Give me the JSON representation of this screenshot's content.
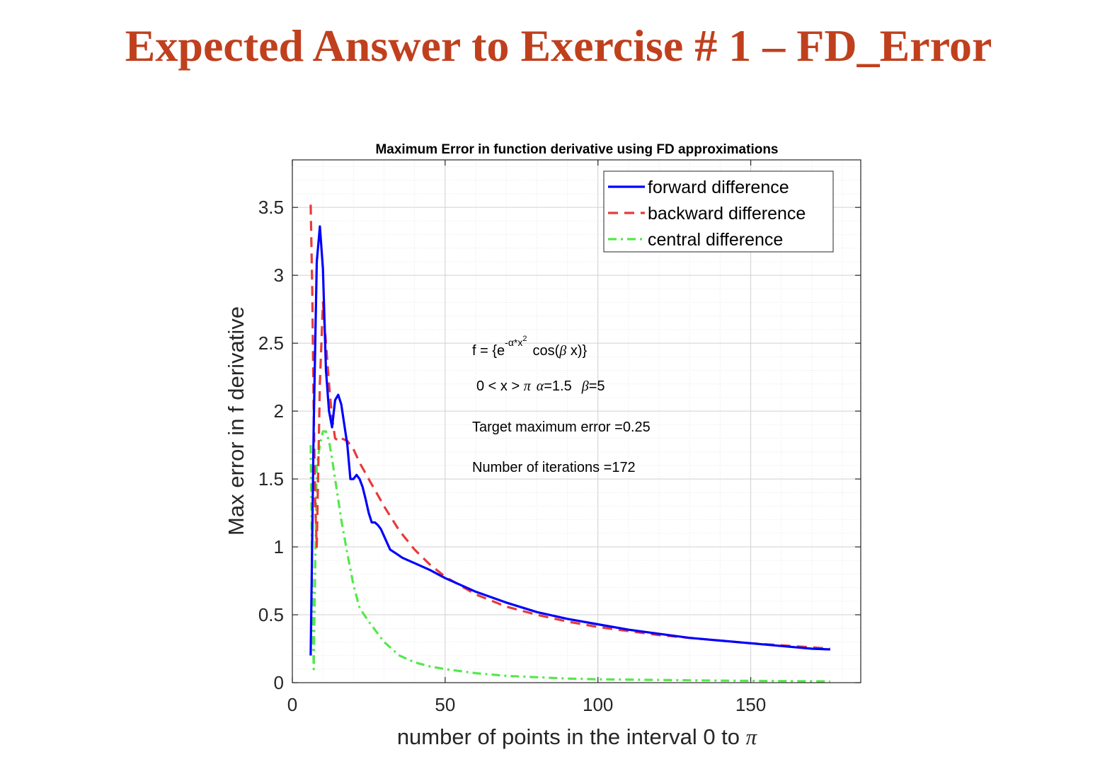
{
  "page": {
    "title": "Expected Answer to Exercise # 1 – FD_Error"
  },
  "chart_data": {
    "type": "line",
    "title": "Maximum Error in function derivative using FD approximations",
    "xlabel": "number of points in the interval 0 to π",
    "ylabel": "Max error in f derivative",
    "xlim": [
      0,
      186
    ],
    "ylim": [
      0,
      3.85
    ],
    "xticks": [
      0,
      50,
      100,
      150
    ],
    "yticks": [
      0,
      0.5,
      1,
      1.5,
      2,
      2.5,
      3,
      3.5
    ],
    "xtick_labels": [
      "0",
      "50",
      "100",
      "150"
    ],
    "ytick_labels": [
      "0",
      "0.5",
      "1",
      "1.5",
      "2",
      "2.5",
      "3",
      "3.5"
    ],
    "grid": true,
    "minor_grid": true,
    "legend_position": "top-right",
    "series": [
      {
        "name": "forward difference",
        "color": "#0000ff",
        "style": "solid",
        "x": [
          6,
          7,
          8,
          9,
          10,
          11,
          12,
          13,
          14,
          15,
          16,
          17,
          18,
          19,
          20,
          21,
          22,
          23,
          24,
          25,
          26,
          27,
          28,
          29,
          30,
          31,
          32,
          34,
          36,
          40,
          45,
          50,
          60,
          70,
          80,
          90,
          100,
          110,
          120,
          130,
          140,
          150,
          160,
          170,
          176
        ],
        "y": [
          0.2,
          1.9,
          3.1,
          3.36,
          3.05,
          2.3,
          2.0,
          1.88,
          2.08,
          2.12,
          2.05,
          1.9,
          1.75,
          1.5,
          1.5,
          1.53,
          1.5,
          1.44,
          1.35,
          1.25,
          1.18,
          1.18,
          1.16,
          1.13,
          1.08,
          1.03,
          0.98,
          0.95,
          0.92,
          0.88,
          0.83,
          0.77,
          0.67,
          0.59,
          0.52,
          0.47,
          0.43,
          0.39,
          0.36,
          0.33,
          0.31,
          0.29,
          0.27,
          0.25,
          0.245
        ]
      },
      {
        "name": "backward difference",
        "color": "#e83a3a",
        "style": "dashed",
        "x": [
          6,
          6.5,
          7,
          7.5,
          8,
          9,
          10,
          11,
          12,
          13,
          14,
          15,
          16,
          18,
          20,
          22,
          25,
          28,
          30,
          35,
          40,
          45,
          50,
          60,
          70,
          80,
          90,
          100,
          110,
          120,
          130,
          140,
          150,
          160,
          170,
          176
        ],
        "y": [
          3.52,
          2.9,
          2.0,
          1.3,
          1.0,
          2.2,
          2.8,
          2.5,
          2.2,
          1.95,
          1.8,
          1.78,
          1.8,
          1.78,
          1.72,
          1.62,
          1.5,
          1.38,
          1.3,
          1.12,
          0.98,
          0.87,
          0.78,
          0.65,
          0.56,
          0.5,
          0.45,
          0.41,
          0.38,
          0.35,
          0.33,
          0.31,
          0.29,
          0.275,
          0.26,
          0.25
        ]
      },
      {
        "name": "central difference",
        "color": "#55e84a",
        "style": "dashdot",
        "x": [
          6,
          6.5,
          7,
          7.5,
          8,
          9,
          10,
          11,
          12,
          13,
          14,
          15,
          16,
          18,
          20,
          22,
          25,
          28,
          30,
          35,
          40,
          45,
          50,
          60,
          70,
          80,
          90,
          100,
          120,
          140,
          160,
          176
        ],
        "y": [
          1.75,
          0.8,
          0.1,
          0.9,
          1.6,
          1.75,
          1.85,
          1.85,
          1.78,
          1.65,
          1.5,
          1.35,
          1.2,
          0.95,
          0.72,
          0.55,
          0.45,
          0.36,
          0.3,
          0.2,
          0.15,
          0.12,
          0.1,
          0.07,
          0.05,
          0.04,
          0.03,
          0.025,
          0.02,
          0.015,
          0.012,
          0.01
        ]
      }
    ],
    "annotations": {
      "formula_prefix": "f = {e",
      "formula_exp": "-α*x",
      "formula_exp_sq": "2",
      "formula_cos": "cos(",
      "formula_beta": "β",
      "formula_end": " x)}",
      "domain_text": "0 < x > ",
      "domain_pi": "π",
      "domain_alpha": "α",
      "domain_alpha_val": "=1.5",
      "domain_beta": "β",
      "domain_beta_val": "=5",
      "target_error": "Target maximum error =0.25",
      "iterations": "Number of iterations =172"
    }
  }
}
